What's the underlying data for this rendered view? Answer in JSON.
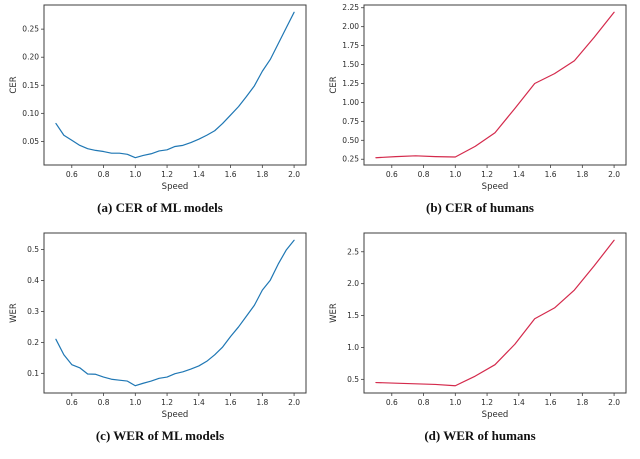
{
  "page": {
    "background": "#ffffff",
    "text_color": "#111111"
  },
  "chart_data": [
    {
      "id": "a",
      "type": "line",
      "title": "(a) CER of ML models",
      "xlabel": "Speed",
      "ylabel": "CER",
      "color": "#1f77b4",
      "grid": false,
      "legend": "none",
      "xlim": [
        0.425,
        2.075
      ],
      "ylim": [
        0.008,
        0.293
      ],
      "xticks": [
        {
          "v": 0.6,
          "label": "0.6"
        },
        {
          "v": 0.8,
          "label": "0.8"
        },
        {
          "v": 1.0,
          "label": "1.0"
        },
        {
          "v": 1.2,
          "label": "1.2"
        },
        {
          "v": 1.4,
          "label": "1.4"
        },
        {
          "v": 1.6,
          "label": "1.6"
        },
        {
          "v": 1.8,
          "label": "1.8"
        },
        {
          "v": 2.0,
          "label": "2.0"
        }
      ],
      "yticks": [
        {
          "v": 0.05,
          "label": "0.05"
        },
        {
          "v": 0.1,
          "label": "0.10"
        },
        {
          "v": 0.15,
          "label": "0.15"
        },
        {
          "v": 0.2,
          "label": "0.20"
        },
        {
          "v": 0.25,
          "label": "0.25"
        }
      ],
      "x": [
        0.5,
        0.55,
        0.6,
        0.65,
        0.7,
        0.75,
        0.8,
        0.85,
        0.9,
        0.95,
        1.0,
        1.05,
        1.1,
        1.15,
        1.2,
        1.25,
        1.3,
        1.35,
        1.4,
        1.45,
        1.5,
        1.55,
        1.6,
        1.65,
        1.7,
        1.75,
        1.8,
        1.85,
        1.9,
        1.95,
        2.0
      ],
      "y": [
        0.082,
        0.061,
        0.052,
        0.043,
        0.037,
        0.034,
        0.032,
        0.029,
        0.029,
        0.027,
        0.021,
        0.025,
        0.028,
        0.033,
        0.035,
        0.041,
        0.043,
        0.048,
        0.054,
        0.061,
        0.069,
        0.082,
        0.097,
        0.112,
        0.13,
        0.149,
        0.175,
        0.196,
        0.224,
        0.252,
        0.28
      ]
    },
    {
      "id": "b",
      "type": "line",
      "title": "(b) CER of humans",
      "xlabel": "Speed",
      "ylabel": "CER",
      "color": "#d42a4c",
      "grid": false,
      "legend": "none",
      "xlim": [
        0.425,
        2.075
      ],
      "ylim": [
        0.174,
        2.286
      ],
      "xticks": [
        {
          "v": 0.6,
          "label": "0.6"
        },
        {
          "v": 0.8,
          "label": "0.8"
        },
        {
          "v": 1.0,
          "label": "1.0"
        },
        {
          "v": 1.2,
          "label": "1.2"
        },
        {
          "v": 1.4,
          "label": "1.4"
        },
        {
          "v": 1.6,
          "label": "1.6"
        },
        {
          "v": 1.8,
          "label": "1.8"
        },
        {
          "v": 2.0,
          "label": "2.0"
        }
      ],
      "yticks": [
        {
          "v": 0.25,
          "label": "0.25"
        },
        {
          "v": 0.5,
          "label": "0.50"
        },
        {
          "v": 0.75,
          "label": "0.75"
        },
        {
          "v": 1.0,
          "label": "1.00"
        },
        {
          "v": 1.25,
          "label": "1.25"
        },
        {
          "v": 1.5,
          "label": "1.50"
        },
        {
          "v": 1.75,
          "label": "1.75"
        },
        {
          "v": 2.0,
          "label": "2.00"
        },
        {
          "v": 2.25,
          "label": "2.25"
        }
      ],
      "x": [
        0.5,
        0.625,
        0.75,
        0.875,
        1.0,
        1.125,
        1.25,
        1.375,
        1.5,
        1.625,
        1.75,
        1.875,
        2.0
      ],
      "y": [
        0.27,
        0.285,
        0.295,
        0.285,
        0.28,
        0.42,
        0.6,
        0.92,
        1.25,
        1.38,
        1.55,
        1.86,
        2.19
      ]
    },
    {
      "id": "c",
      "type": "line",
      "title": "(c) WER of ML models",
      "xlabel": "Speed",
      "ylabel": "WER",
      "color": "#1f77b4",
      "grid": false,
      "legend": "none",
      "xlim": [
        0.425,
        2.075
      ],
      "ylim": [
        0.0365,
        0.5535
      ],
      "xticks": [
        {
          "v": 0.6,
          "label": "0.6"
        },
        {
          "v": 0.8,
          "label": "0.8"
        },
        {
          "v": 1.0,
          "label": "1.0"
        },
        {
          "v": 1.2,
          "label": "1.2"
        },
        {
          "v": 1.4,
          "label": "1.4"
        },
        {
          "v": 1.6,
          "label": "1.6"
        },
        {
          "v": 1.8,
          "label": "1.8"
        },
        {
          "v": 2.0,
          "label": "2.0"
        }
      ],
      "yticks": [
        {
          "v": 0.1,
          "label": "0.1"
        },
        {
          "v": 0.2,
          "label": "0.2"
        },
        {
          "v": 0.3,
          "label": "0.3"
        },
        {
          "v": 0.4,
          "label": "0.4"
        },
        {
          "v": 0.5,
          "label": "0.5"
        }
      ],
      "x": [
        0.5,
        0.55,
        0.6,
        0.65,
        0.7,
        0.75,
        0.8,
        0.85,
        0.9,
        0.95,
        1.0,
        1.05,
        1.1,
        1.15,
        1.2,
        1.25,
        1.3,
        1.35,
        1.4,
        1.45,
        1.5,
        1.55,
        1.6,
        1.65,
        1.7,
        1.75,
        1.8,
        1.85,
        1.9,
        1.95,
        2.0
      ],
      "y": [
        0.21,
        0.16,
        0.128,
        0.118,
        0.098,
        0.097,
        0.088,
        0.081,
        0.078,
        0.075,
        0.06,
        0.068,
        0.075,
        0.084,
        0.088,
        0.099,
        0.105,
        0.114,
        0.124,
        0.139,
        0.16,
        0.185,
        0.219,
        0.25,
        0.285,
        0.32,
        0.369,
        0.401,
        0.453,
        0.498,
        0.53
      ]
    },
    {
      "id": "d",
      "type": "line",
      "title": "(d) WER of humans",
      "xlabel": "Speed",
      "ylabel": "WER",
      "color": "#d42a4c",
      "grid": false,
      "legend": "none",
      "xlim": [
        0.425,
        2.075
      ],
      "ylim": [
        0.286,
        2.794
      ],
      "xticks": [
        {
          "v": 0.6,
          "label": "0.6"
        },
        {
          "v": 0.8,
          "label": "0.8"
        },
        {
          "v": 1.0,
          "label": "1.0"
        },
        {
          "v": 1.2,
          "label": "1.2"
        },
        {
          "v": 1.4,
          "label": "1.4"
        },
        {
          "v": 1.6,
          "label": "1.6"
        },
        {
          "v": 1.8,
          "label": "1.8"
        },
        {
          "v": 2.0,
          "label": "2.0"
        }
      ],
      "yticks": [
        {
          "v": 0.5,
          "label": "0.5"
        },
        {
          "v": 1.0,
          "label": "1.0"
        },
        {
          "v": 1.5,
          "label": "1.5"
        },
        {
          "v": 2.0,
          "label": "2.0"
        },
        {
          "v": 2.5,
          "label": "2.5"
        }
      ],
      "x": [
        0.5,
        0.625,
        0.75,
        0.875,
        1.0,
        1.125,
        1.25,
        1.375,
        1.5,
        1.625,
        1.75,
        1.875,
        2.0
      ],
      "y": [
        0.45,
        0.44,
        0.43,
        0.42,
        0.4,
        0.55,
        0.73,
        1.05,
        1.45,
        1.62,
        1.9,
        2.28,
        2.68
      ]
    }
  ]
}
